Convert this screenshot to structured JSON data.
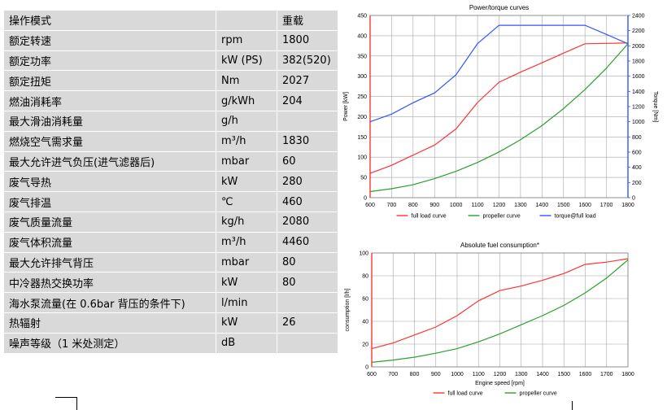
{
  "spec_table": {
    "rows": [
      {
        "param": "操作模式",
        "unit": "",
        "value": "重载"
      },
      {
        "param": "额定转速",
        "unit": "rpm",
        "value": "1800"
      },
      {
        "param": "额定功率",
        "unit": "kW (PS)",
        "value": "382(520)"
      },
      {
        "param": "额定扭矩",
        "unit": "Nm",
        "value": "2027"
      },
      {
        "param": "燃油消耗率",
        "unit": "g/kWh",
        "value": "204"
      },
      {
        "param": "最大滑油消耗量",
        "unit": "g/h",
        "value": ""
      },
      {
        "param": "燃烧空气需求量",
        "unit": "m³/h",
        "value": "1830"
      },
      {
        "param": "最大允许进气负压(进气滤器后)",
        "unit": "mbar",
        "value": "60"
      },
      {
        "param": "废气导热",
        "unit": "kW",
        "value": "280"
      },
      {
        "param": "废气排温",
        "unit": "℃",
        "value": "460"
      },
      {
        "param": "废气质量流量",
        "unit": "kg/h",
        "value": "2080"
      },
      {
        "param": "废气体积流量",
        "unit": "m³/h",
        "value": "4460"
      },
      {
        "param": "最大允许排气背压",
        "unit": "mbar",
        "value": "80"
      },
      {
        "param": "中冷器热交换功率",
        "unit": "kW",
        "value": "80"
      },
      {
        "param": "海水泵流量(在 0.6bar 背压的条件下)",
        "unit": "l/min",
        "value": ""
      },
      {
        "param": "热辐射",
        "unit": "kW",
        "value": "26"
      },
      {
        "param": "噪声等级（1 米处测定）",
        "unit": "dB",
        "value": ""
      }
    ]
  },
  "chart_data": [
    {
      "type": "line",
      "title": "Power/torque curves",
      "xlabel": "",
      "ylabel": "Power [kW]",
      "ylabel_right": "Torque [Nm]",
      "x": [
        600,
        700,
        800,
        900,
        1000,
        1100,
        1200,
        1300,
        1400,
        1500,
        1600,
        1700,
        1800
      ],
      "xlim": [
        600,
        1800
      ],
      "ylim": [
        0,
        450
      ],
      "ylim_right": [
        0,
        2400
      ],
      "yticks": [
        0,
        50,
        100,
        150,
        200,
        250,
        300,
        350,
        400,
        450
      ],
      "yticks_right": [
        0,
        200,
        400,
        600,
        800,
        1000,
        1200,
        1400,
        1600,
        1800,
        2000,
        2200,
        2400
      ],
      "grid": true,
      "legend": "bottom",
      "series": [
        {
          "name": "full load curve",
          "axis": "left",
          "color": "#ff3333",
          "values": [
            60,
            80,
            105,
            130,
            170,
            235,
            285,
            310,
            333,
            357,
            380,
            381,
            382
          ]
        },
        {
          "name": "propeller curve",
          "axis": "left",
          "color": "#2ca02c",
          "values": [
            15,
            22,
            32,
            47,
            65,
            87,
            113,
            143,
            178,
            220,
            267,
            320,
            380
          ]
        },
        {
          "name": "torque@full load",
          "axis": "right",
          "color": "#3355ff",
          "values": [
            1000,
            1100,
            1250,
            1380,
            1620,
            2030,
            2270,
            2270,
            2270,
            2270,
            2270,
            2150,
            2027
          ]
        }
      ]
    },
    {
      "type": "line",
      "title": "Absolute fuel consumption*",
      "xlabel": "Engine speed [rpm]",
      "ylabel": "consumption [l/h]",
      "x": [
        600,
        700,
        800,
        900,
        1000,
        1100,
        1200,
        1300,
        1400,
        1500,
        1600,
        1700,
        1800
      ],
      "xlim": [
        600,
        1800
      ],
      "ylim": [
        0,
        100
      ],
      "yticks": [
        0,
        20,
        40,
        60,
        80,
        100
      ],
      "grid": true,
      "legend": "bottom",
      "series": [
        {
          "name": "full load curve",
          "color": "#ff3333",
          "values": [
            16,
            21,
            28,
            35,
            45,
            58,
            67,
            71,
            76,
            82,
            90,
            92,
            95
          ]
        },
        {
          "name": "propeller curve",
          "color": "#2ca02c",
          "values": [
            4,
            6,
            8.5,
            12,
            16,
            22,
            29,
            37,
            45,
            54,
            65,
            78,
            94
          ]
        }
      ]
    }
  ]
}
